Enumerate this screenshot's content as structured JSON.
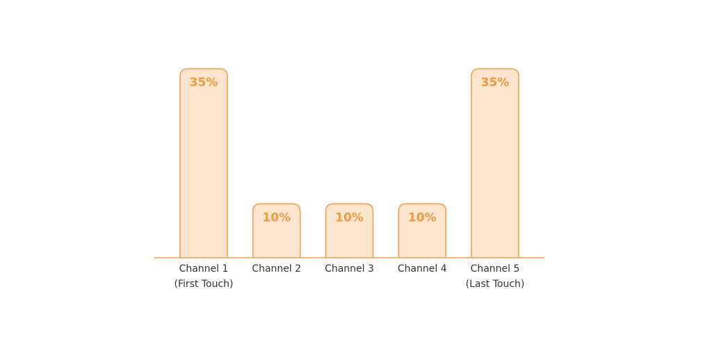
{
  "chart_data": {
    "type": "bar",
    "categories": [
      [
        "Channel 1",
        "(First Touch)"
      ],
      [
        "Channel 2"
      ],
      [
        "Channel 3"
      ],
      [
        "Channel 4"
      ],
      [
        "Channel 5",
        "(Last Touch)"
      ]
    ],
    "values": [
      35,
      10,
      10,
      10,
      35
    ],
    "value_labels": [
      "35%",
      "10%",
      "10%",
      "10%",
      "35%"
    ],
    "ylim": [
      0,
      35
    ],
    "grid": false,
    "colors": {
      "bar_fill": "#fbe5cf",
      "bar_stroke": "#f3a04b",
      "value_text": "#f09a3e",
      "category_text": "#333333"
    }
  }
}
